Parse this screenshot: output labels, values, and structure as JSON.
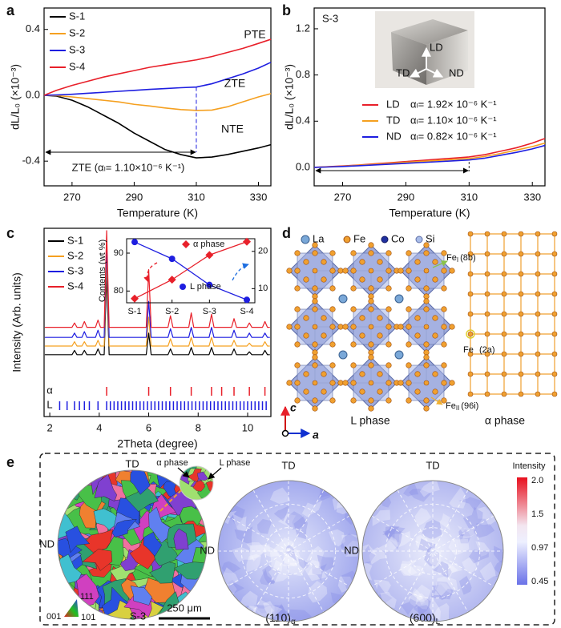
{
  "panel_labels": [
    "a",
    "b",
    "c",
    "d",
    "e"
  ],
  "chart_data": [
    {
      "type": "line",
      "xlabel": "Temperature (K)",
      "ylabel": "dL/L₀ (×10⁻³)",
      "xlim": [
        261,
        334
      ],
      "xticks": [
        270,
        290,
        310,
        330
      ],
      "ylim": [
        -0.55,
        0.53
      ],
      "yticks": [
        -0.4,
        {
          "value": 0,
          "label": "0.0"
        },
        0.4
      ],
      "x": [
        261,
        265,
        270,
        275,
        280,
        285,
        290,
        295,
        300,
        305,
        310,
        315,
        320,
        325,
        330,
        334
      ],
      "series": [
        {
          "name": "S-1",
          "color": "#000000",
          "values": [
            0,
            -0.005,
            -0.03,
            -0.07,
            -0.12,
            -0.17,
            -0.23,
            -0.28,
            -0.33,
            -0.36,
            -0.38,
            -0.375,
            -0.36,
            -0.34,
            -0.32,
            -0.3
          ]
        },
        {
          "name": "S-2",
          "color": "#f5a020",
          "values": [
            0,
            -0.002,
            -0.01,
            -0.02,
            -0.03,
            -0.04,
            -0.055,
            -0.065,
            -0.077,
            -0.087,
            -0.092,
            -0.09,
            -0.07,
            -0.04,
            -0.01,
            0.01
          ]
        },
        {
          "name": "S-3",
          "color": "#1e1ee0",
          "values": [
            0,
            0.002,
            0.006,
            0.012,
            0.018,
            0.024,
            0.03,
            0.036,
            0.041,
            0.046,
            0.05,
            0.07,
            0.1,
            0.13,
            0.165,
            0.2
          ]
        },
        {
          "name": "S-4",
          "color": "#e8202a",
          "values": [
            0,
            0.03,
            0.06,
            0.085,
            0.11,
            0.13,
            0.15,
            0.17,
            0.185,
            0.2,
            0.215,
            0.235,
            0.26,
            0.285,
            0.315,
            0.34
          ]
        }
      ],
      "annotations": [
        "PTE",
        "ZTE",
        "NTE",
        "ZTE (αₗ= 1.10×10⁻⁶ K⁻¹)"
      ]
    },
    {
      "type": "line",
      "xlabel": "Temperature (K)",
      "ylabel": "dL/L₀ (×10⁻³)",
      "xlim": [
        261,
        334
      ],
      "xticks": [
        270,
        290,
        310,
        330
      ],
      "ylim": [
        -0.16,
        1.38
      ],
      "yticks": [
        {
          "value": 0,
          "label": "0.0"
        },
        0.4,
        0.8,
        1.2
      ],
      "x": [
        261,
        265,
        270,
        275,
        280,
        285,
        290,
        295,
        300,
        305,
        310,
        315,
        320,
        325,
        330,
        334
      ],
      "series": [
        {
          "name": "LD",
          "color": "#e8202a",
          "coefficient": "αₗ= 1.92× 10⁻⁶ K⁻¹",
          "values": [
            0,
            0.005,
            0.012,
            0.02,
            0.03,
            0.04,
            0.05,
            0.06,
            0.07,
            0.08,
            0.09,
            0.11,
            0.14,
            0.17,
            0.21,
            0.25
          ]
        },
        {
          "name": "TD",
          "color": "#f5a020",
          "coefficient": "αₗ= 1.10× 10⁻⁶ K⁻¹",
          "values": [
            0,
            0.004,
            0.01,
            0.018,
            0.026,
            0.035,
            0.044,
            0.052,
            0.06,
            0.068,
            0.076,
            0.095,
            0.12,
            0.15,
            0.18,
            0.21
          ]
        },
        {
          "name": "ND",
          "color": "#1e1ee0",
          "coefficient": "αₗ= 0.82× 10⁻⁶ K⁻¹",
          "values": [
            0,
            0.003,
            0.008,
            0.014,
            0.021,
            0.028,
            0.035,
            0.042,
            0.049,
            0.056,
            0.064,
            0.08,
            0.105,
            0.13,
            0.16,
            0.19
          ]
        }
      ],
      "annotations": [
        "S-3"
      ],
      "photo_labels": [
        "LD",
        "TD",
        "ND"
      ]
    },
    {
      "type": "line",
      "xlabel": "2Theta (degree)",
      "ylabel": "Intensity (Arb. units)",
      "xlim": [
        1.77,
        10.94
      ],
      "xticks": [
        2,
        4,
        6,
        8,
        10
      ],
      "ylim": [
        0,
        100
      ],
      "x": [
        1.8,
        2.9,
        3.0,
        3.1,
        3.3,
        3.4,
        3.5,
        3.85,
        3.95,
        4.05,
        4.2,
        4.3,
        4.4,
        5.9,
        6.0,
        6.1,
        6.78,
        6.88,
        6.98,
        7.62,
        7.72,
        7.82,
        8.44,
        8.54,
        8.64,
        9.35,
        9.45,
        9.55,
        9.97,
        10.07,
        10.17,
        10.6,
        10.7,
        10.8,
        10.9
      ],
      "series": [
        {
          "name": "S-1",
          "color": "#000000",
          "values": [
            14,
            14,
            17,
            14,
            14,
            17,
            14,
            14,
            18,
            14,
            14,
            69,
            14,
            14,
            29,
            14,
            14,
            18,
            14,
            14,
            19,
            14,
            14,
            19,
            14,
            14,
            18,
            14,
            14,
            16,
            14,
            14,
            17,
            14,
            14
          ]
        },
        {
          "name": "S-2",
          "color": "#f5a020",
          "values": [
            20,
            20,
            23,
            20,
            20,
            23,
            20,
            20,
            24,
            20,
            20,
            80,
            20,
            20,
            40,
            20,
            20,
            25,
            20,
            20,
            26,
            20,
            20,
            26,
            20,
            20,
            24,
            20,
            20,
            22,
            20,
            20,
            23,
            20,
            20
          ]
        },
        {
          "name": "S-3",
          "color": "#1e1ee0",
          "values": [
            26,
            26,
            29,
            26,
            26,
            30,
            26,
            26,
            31,
            26,
            26,
            91,
            26,
            26,
            51,
            26,
            26,
            32,
            26,
            26,
            33,
            26,
            26,
            33,
            26,
            26,
            31,
            26,
            26,
            29,
            26,
            26,
            29,
            26,
            26
          ]
        },
        {
          "name": "S-4",
          "color": "#e8202a",
          "values": [
            33,
            33,
            36,
            33,
            33,
            37,
            33,
            33,
            38,
            33,
            33,
            100,
            33,
            33,
            73,
            33,
            33,
            41,
            33,
            33,
            43,
            33,
            33,
            42,
            33,
            33,
            39,
            33,
            33,
            36,
            33,
            33,
            37,
            33,
            33
          ]
        }
      ],
      "reference_lines": [
        {
          "name": "α",
          "color": "#e8202a",
          "positions": [
            4.3,
            6.0,
            6.88,
            7.72,
            8.54,
            8.95,
            9.45,
            10.07,
            10.7
          ]
        },
        {
          "name": "L",
          "color": "#1e1ee0",
          "positions": [
            2.4,
            2.7,
            3.0,
            3.2,
            3.4,
            3.6,
            3.95,
            4.3,
            4.45,
            4.6,
            4.75,
            4.9,
            5.05,
            5.2,
            5.35,
            5.5,
            5.65,
            5.8,
            5.95,
            6.1,
            6.25,
            6.4,
            6.55,
            6.7,
            6.85,
            7.0,
            7.15,
            7.3,
            7.45,
            7.6,
            7.75,
            7.9,
            8.05,
            8.2,
            8.35,
            8.5,
            8.65,
            8.8,
            8.95,
            9.1,
            9.25,
            9.4,
            9.55,
            9.7,
            9.85,
            10.0,
            10.15,
            10.3,
            10.45,
            10.6,
            10.75
          ]
        }
      ]
    },
    {
      "type": "line",
      "ylabel": "Contents (wt %)",
      "categories": [
        "S-1",
        "S-2",
        "S-3",
        "S-4"
      ],
      "ylim": [
        76.9,
        93.8
      ],
      "yticks": [
        80,
        90
      ],
      "y2lim": [
        6.2,
        23.4
      ],
      "y2ticks": [
        10,
        20
      ],
      "series": [
        {
          "name": "α phase",
          "color": "#e8202a",
          "marker": "diamond",
          "values": [
            78,
            83,
            89.5,
            93
          ]
        },
        {
          "name": "L phase",
          "color": "#1e1ee0",
          "marker": "circle",
          "axis": "y2",
          "values": [
            22.5,
            18,
            11,
            7
          ]
        }
      ]
    }
  ],
  "panel_d": {
    "legend": [
      "La",
      "Fe",
      "Co",
      "Si"
    ],
    "site_labels": [
      {
        "element": "Fe",
        "site": "I",
        "wyckoff": "(8b)"
      },
      {
        "element": "Fe",
        "wyckoff": "(2a)"
      },
      {
        "element": "Fe",
        "site": "II",
        "wyckoff": "(96i)"
      }
    ],
    "structures": [
      "L phase",
      "α phase"
    ],
    "axes": [
      "c",
      "a"
    ]
  },
  "panel_e": {
    "map_labels": [
      "TD",
      "ND",
      "α phase",
      "L phase",
      "S-3"
    ],
    "scale_bar": "250 μm",
    "ipf_key": [
      "001",
      "111",
      "101"
    ],
    "pole_figures": [
      {
        "directions": [
          "TD",
          "ND"
        ],
        "plane": "(110)",
        "phase": "α"
      },
      {
        "directions": [
          "TD",
          "ND"
        ],
        "plane": "(600)",
        "phase": "L"
      }
    ],
    "colorbar": {
      "title": "Intensity",
      "ticks": [
        {
          "value": 2,
          "label": "2.0"
        },
        1.5,
        0.97,
        0.45
      ]
    }
  }
}
